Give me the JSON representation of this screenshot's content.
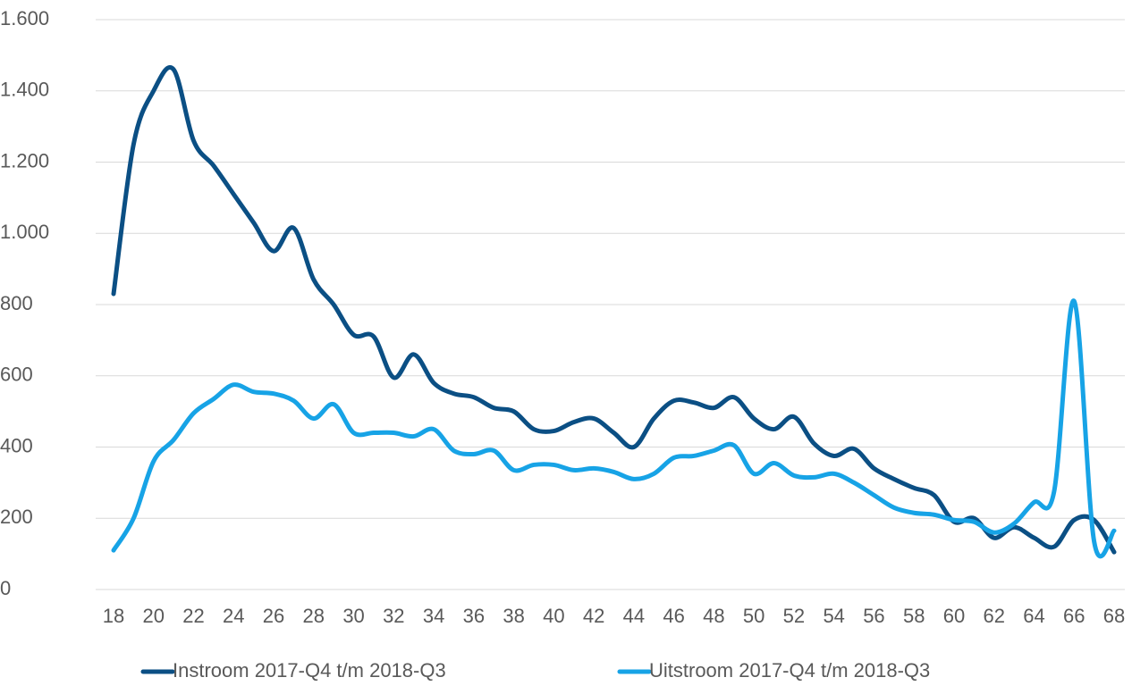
{
  "chart_data": {
    "type": "line",
    "x": [
      18,
      19,
      20,
      21,
      22,
      23,
      24,
      25,
      26,
      27,
      28,
      29,
      30,
      31,
      32,
      33,
      34,
      35,
      36,
      37,
      38,
      39,
      40,
      41,
      42,
      43,
      44,
      45,
      46,
      47,
      48,
      49,
      50,
      51,
      52,
      53,
      54,
      55,
      56,
      57,
      58,
      59,
      60,
      61,
      62,
      63,
      64,
      65,
      66,
      67,
      68
    ],
    "series": [
      {
        "name": "Instroom 2017-Q4 t/m 2018-Q3",
        "color": "#0b4f84",
        "values": [
          830,
          1250,
          1400,
          1460,
          1260,
          1190,
          1110,
          1030,
          950,
          1015,
          870,
          800,
          715,
          710,
          595,
          660,
          580,
          550,
          540,
          510,
          500,
          450,
          445,
          470,
          480,
          440,
          400,
          480,
          530,
          525,
          510,
          540,
          480,
          450,
          485,
          410,
          375,
          395,
          340,
          310,
          285,
          265,
          190,
          200,
          145,
          175,
          145,
          120,
          195,
          195,
          105
        ]
      },
      {
        "name": "Uitstroom 2017-Q4 t/m 2018-Q3",
        "color": "#17a3e6",
        "values": [
          110,
          200,
          360,
          420,
          495,
          535,
          575,
          555,
          550,
          530,
          480,
          520,
          440,
          440,
          440,
          430,
          450,
          390,
          380,
          390,
          335,
          350,
          350,
          335,
          340,
          330,
          310,
          325,
          370,
          375,
          390,
          405,
          325,
          355,
          320,
          315,
          325,
          300,
          265,
          230,
          215,
          210,
          195,
          190,
          160,
          185,
          245,
          275,
          810,
          135,
          165
        ]
      }
    ],
    "xlim": [
      18,
      68
    ],
    "xticks": [
      18,
      20,
      22,
      24,
      26,
      28,
      30,
      32,
      34,
      36,
      38,
      40,
      42,
      44,
      46,
      48,
      50,
      52,
      54,
      56,
      58,
      60,
      62,
      64,
      66,
      68
    ],
    "ylim": [
      0,
      1600
    ],
    "yticks": [
      0,
      200,
      400,
      600,
      800,
      {
        "value": 1000,
        "label": "1.000"
      },
      {
        "value": 1200,
        "label": "1.200"
      },
      {
        "value": 1400,
        "label": "1.400"
      },
      {
        "value": 1600,
        "label": "1.600"
      }
    ],
    "grid": true,
    "legend": "bottom"
  }
}
